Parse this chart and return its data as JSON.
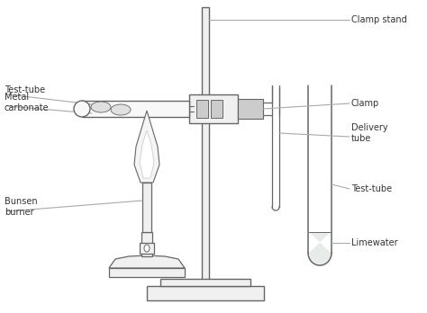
{
  "bg_color": "#ffffff",
  "line_color": "#666666",
  "label_color": "#333333",
  "label_line_color": "#aaaaaa",
  "labels": {
    "clamp_stand": "Clamp stand",
    "clamp": "Clamp",
    "delivery_tube": "Delivery\ntube",
    "test_tube_right": "Test-tube",
    "limewater": "Limewater",
    "test_tube_left_1": "Test-tube",
    "test_tube_left_2": "Metal\ncarbonate",
    "bunsen_burner": "Bunsen\nburner"
  },
  "font_size": 7.0
}
